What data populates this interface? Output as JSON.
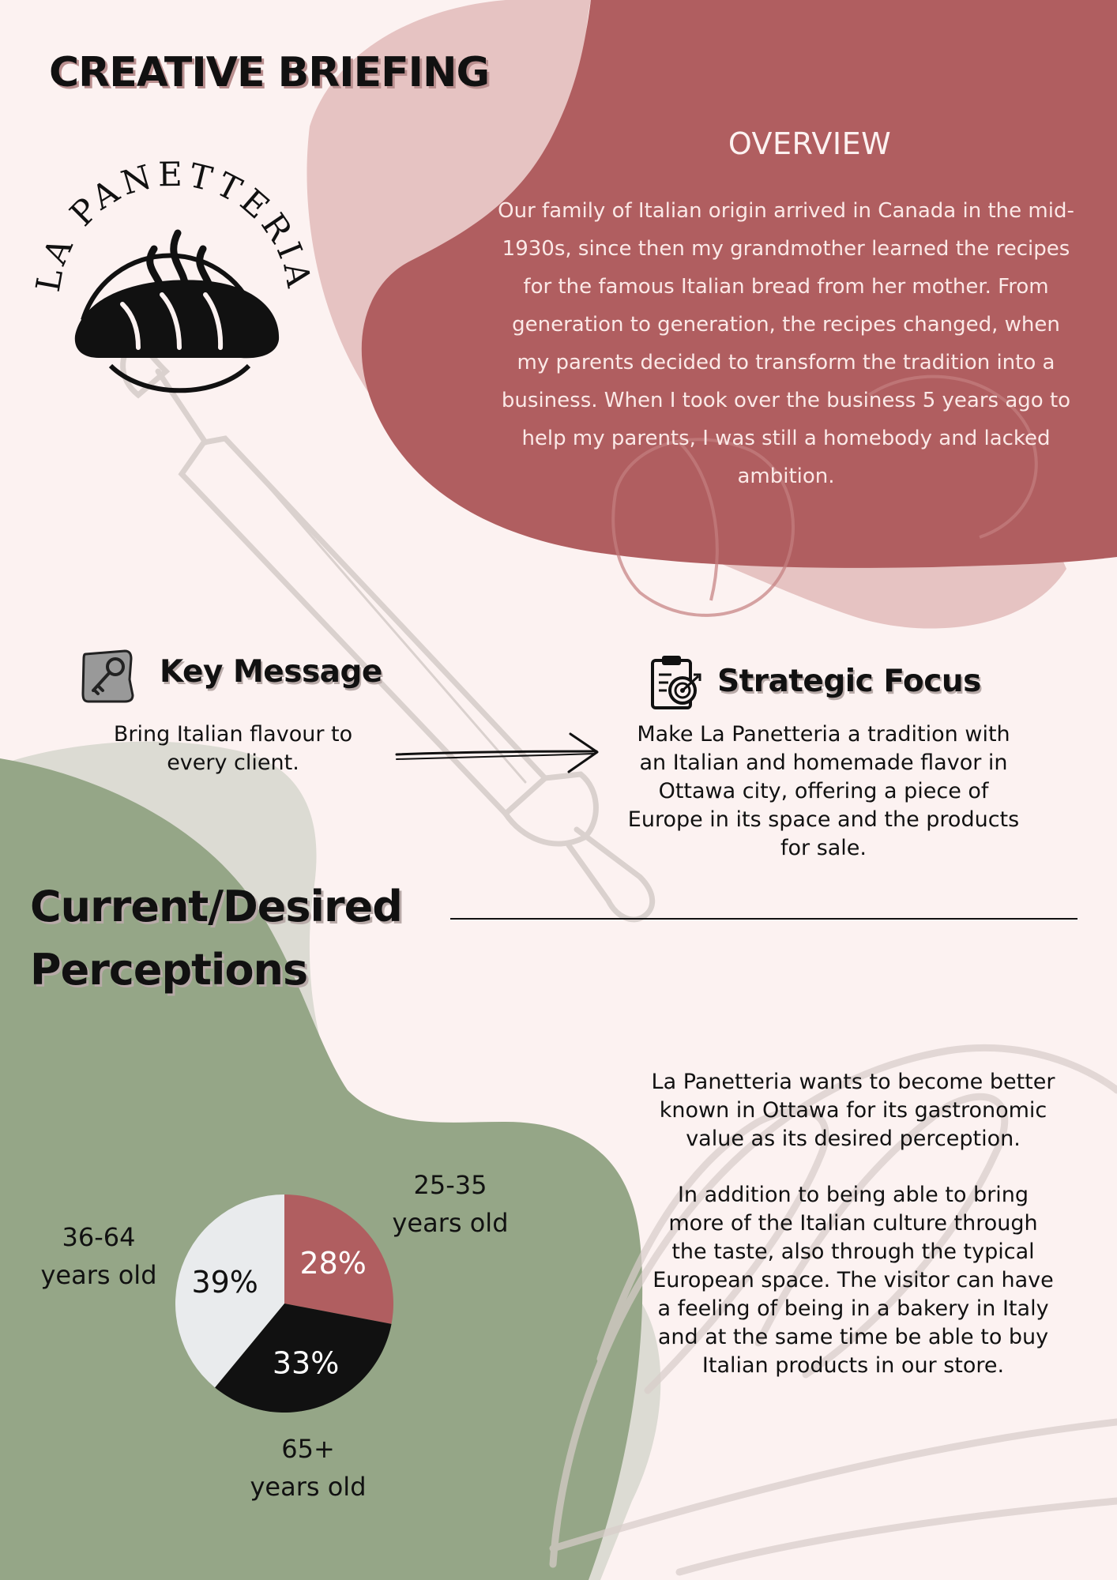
{
  "page": {
    "title": "CREATIVE BRIEFING"
  },
  "logo": {
    "text": "LA PANETTERIA"
  },
  "overview": {
    "title": "OVERVIEW",
    "body": "Our family of Italian origin arrived in Canada in the mid-1930s, since then my grandmother learned the recipes for the famous Italian bread from her mother. From generation to generation, the recipes changed, when my parents decided to transform the tradition into a business. When I took over the business 5 years ago to help my parents, I was still a homebody and lacked ambition."
  },
  "key_message": {
    "title": "Key Message",
    "body": "Bring Italian flavour to every client.",
    "icon": "key-icon"
  },
  "strategic_focus": {
    "title": "Strategic Focus",
    "body": "Make La Panetteria a tradition with an Italian and homemade flavor in Ottawa city, offering a piece of Europe in its space and the products for sale.",
    "icon": "target-clipboard-icon"
  },
  "perceptions": {
    "title": "Current/Desired Perceptions",
    "paragraph_1": "La Panetteria wants to become better known in Ottawa for its gastronomic value as its desired perception.",
    "paragraph_2": "In addition to being able to bring more of the Italian culture through the taste, also through the typical European space. The visitor can have a feeling of being in a bakery in Italy and at the same time be able to buy Italian products in our store."
  },
  "colors": {
    "background": "#fcf2f1",
    "rose": "#b05e60",
    "blush": "#e6c3c2",
    "sage": "#95a687",
    "stone": "#dcdbd3",
    "pale": "#e9ebed",
    "black": "#111111"
  },
  "chart_data": {
    "type": "pie",
    "categories": [
      "25-35 years old",
      "65+ years old",
      "36-64 years old"
    ],
    "values": [
      28,
      33,
      39
    ],
    "value_labels": [
      "28%",
      "33%",
      "39%"
    ],
    "colors": [
      "#b05e60",
      "#111111",
      "#e9ebed"
    ],
    "label_colors": [
      "#ffffff",
      "#ffffff",
      "#111111"
    ],
    "category_lines": [
      [
        "25-35",
        "years old"
      ],
      [
        "65+",
        "years old"
      ],
      [
        "36-64",
        "years old"
      ]
    ]
  }
}
